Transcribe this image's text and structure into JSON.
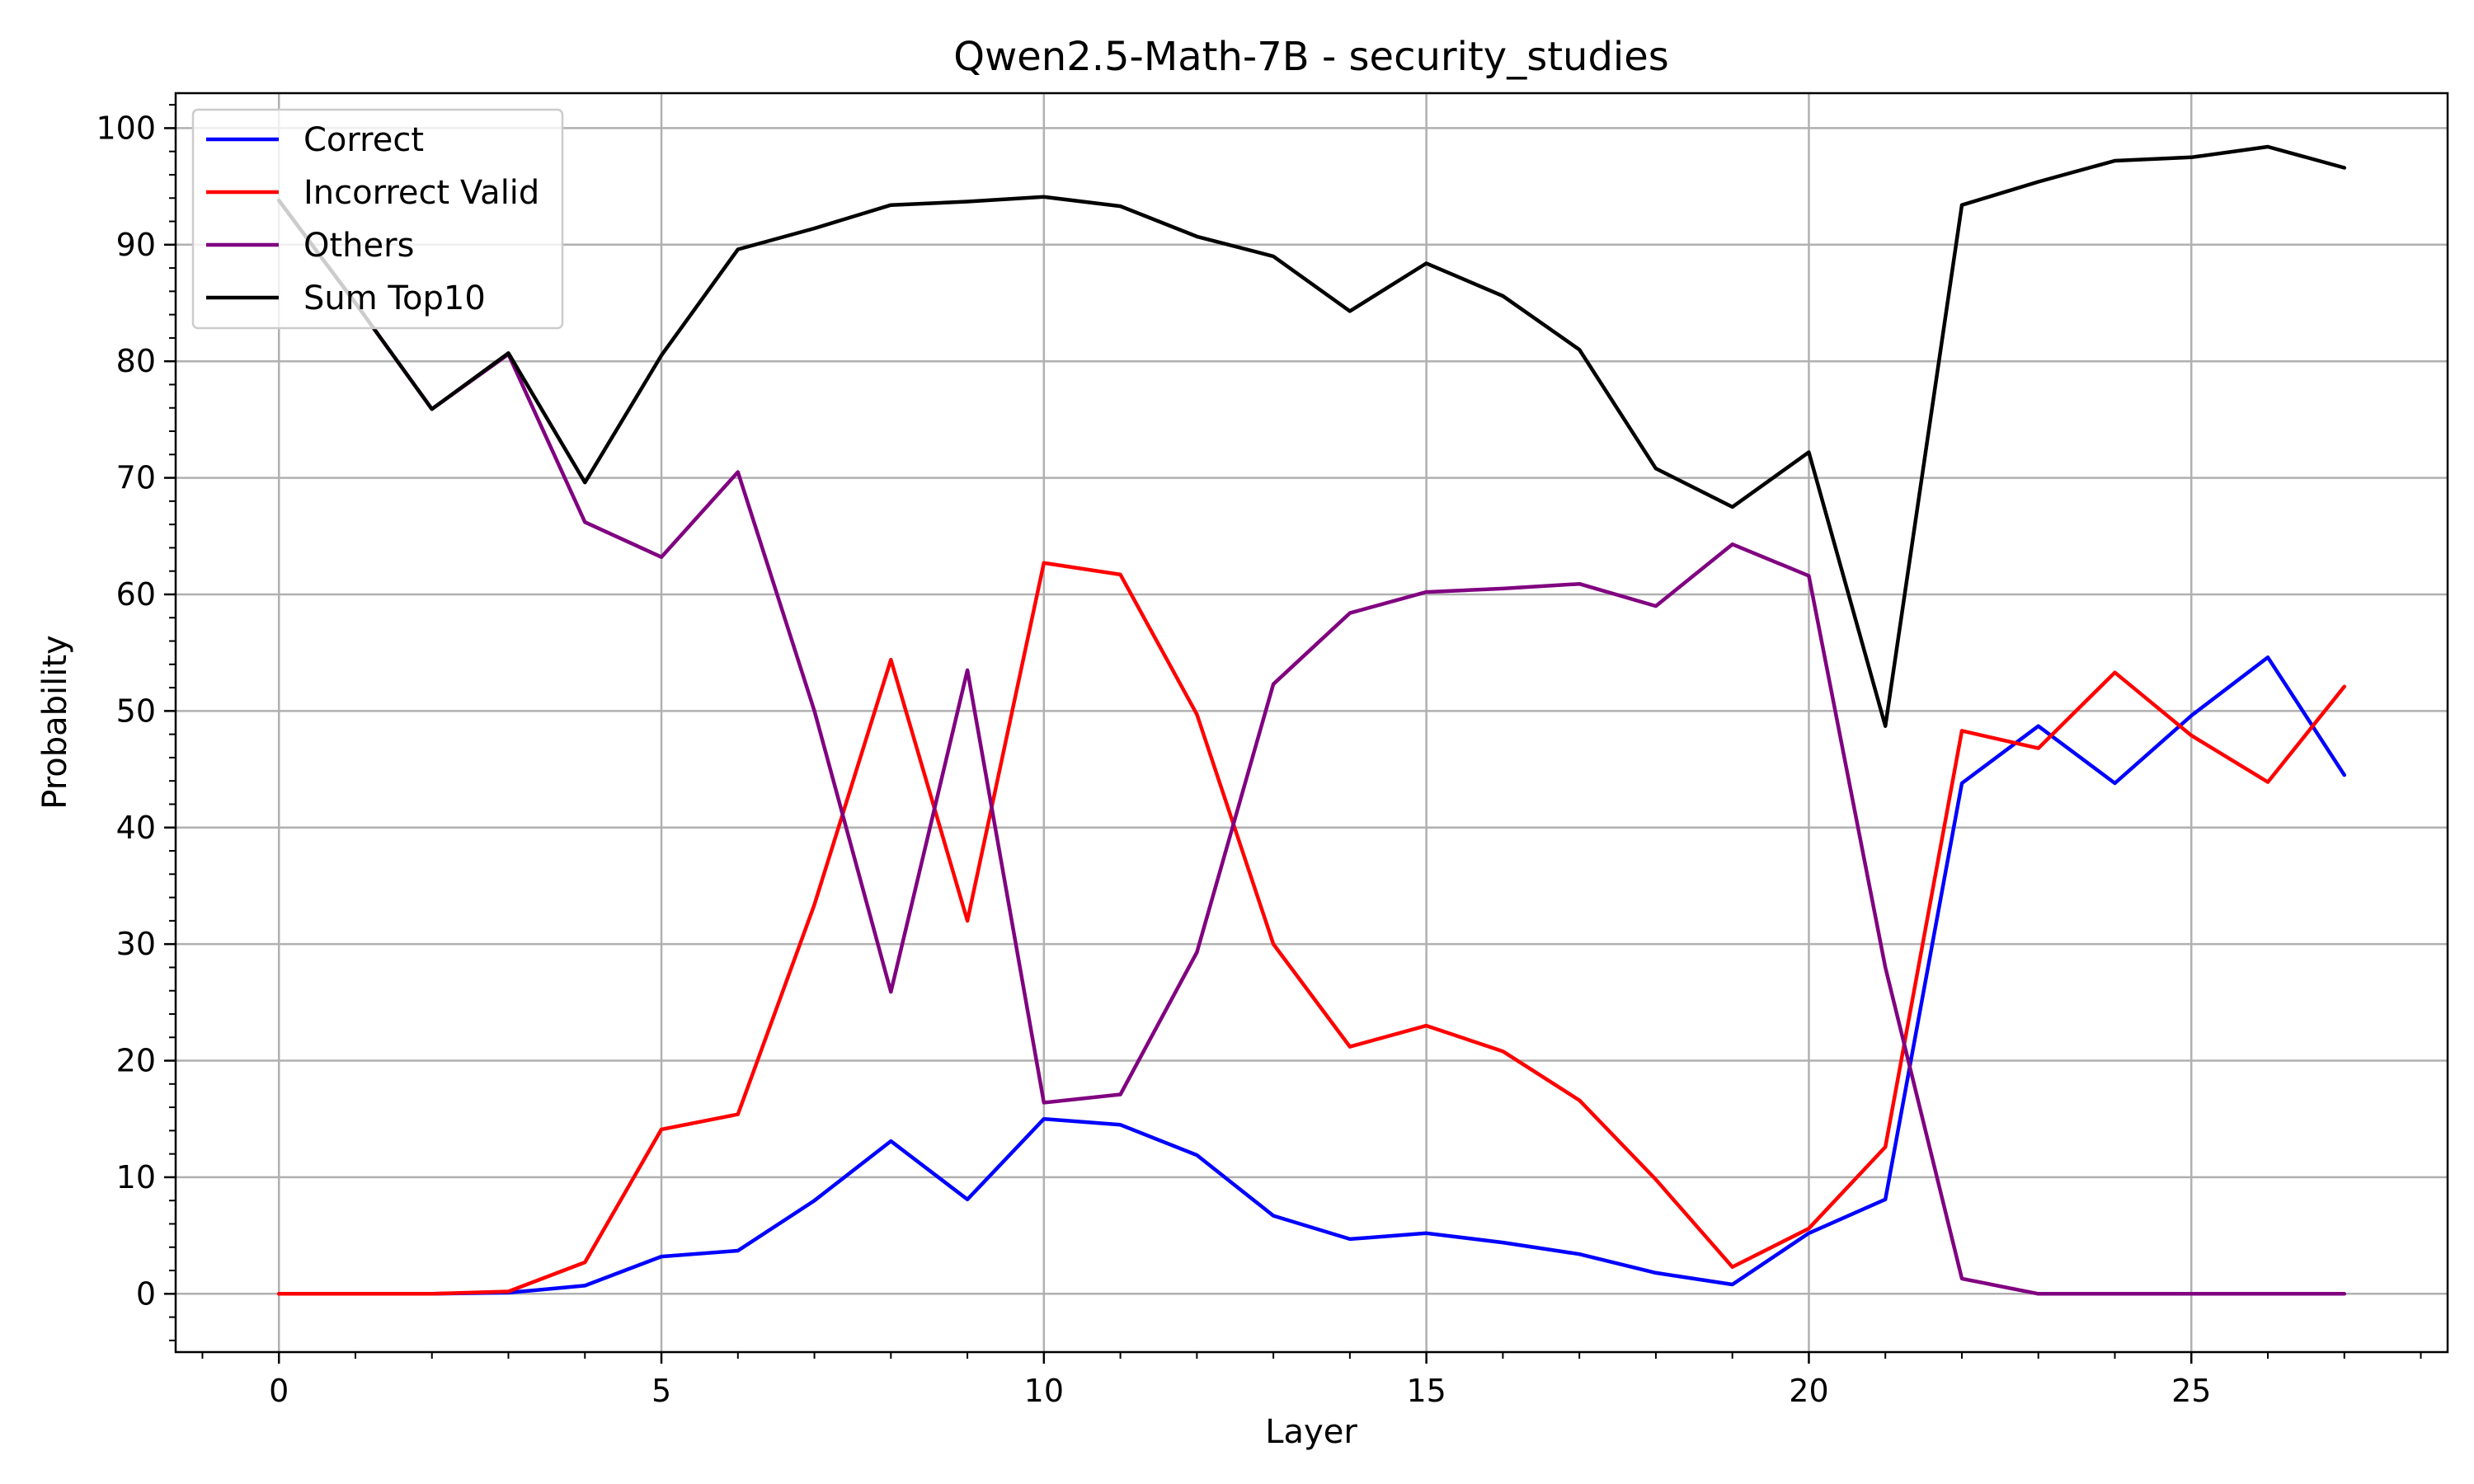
{
  "chart_data": {
    "type": "line",
    "title": "Qwen2.5-Math-7B - security_studies",
    "xlabel": "Layer",
    "ylabel": "Probability",
    "xlim": [
      -1.35,
      28.35
    ],
    "ylim": [
      -5,
      103
    ],
    "xticks": [
      0,
      5,
      10,
      15,
      20,
      25
    ],
    "yticks": [
      0,
      10,
      20,
      30,
      40,
      50,
      60,
      70,
      80,
      90,
      100
    ],
    "grid": true,
    "legend_position": "top-left",
    "x": [
      0,
      1,
      2,
      3,
      4,
      5,
      6,
      7,
      8,
      9,
      10,
      11,
      12,
      13,
      14,
      15,
      16,
      17,
      18,
      19,
      20,
      21,
      22,
      23,
      24,
      25,
      26,
      27
    ],
    "series": [
      {
        "name": "Correct",
        "color": "#0000ff",
        "values": [
          0,
          0,
          0,
          0.1,
          0.7,
          3.2,
          3.7,
          8.0,
          13.1,
          8.1,
          15.0,
          14.5,
          11.9,
          6.7,
          4.7,
          5.2,
          4.4,
          3.4,
          1.8,
          0.8,
          5.2,
          8.1,
          43.8,
          48.7,
          43.8,
          49.6,
          54.6,
          44.5
        ]
      },
      {
        "name": "Incorrect Valid",
        "color": "#ff0000",
        "values": [
          0,
          0,
          0,
          0.2,
          2.7,
          14.1,
          15.4,
          33.4,
          54.4,
          32.0,
          62.7,
          61.7,
          49.7,
          30.0,
          21.2,
          23.0,
          20.8,
          16.6,
          9.8,
          2.3,
          5.6,
          12.6,
          48.3,
          46.8,
          53.3,
          47.9,
          43.9,
          52.1
        ]
      },
      {
        "name": "Others",
        "color": "#800080",
        "values": [
          93.8,
          85.0,
          75.9,
          80.6,
          66.2,
          63.2,
          70.5,
          50.0,
          25.9,
          53.5,
          16.4,
          17.1,
          29.3,
          52.3,
          58.4,
          60.2,
          60.5,
          60.9,
          59.0,
          64.3,
          61.6,
          28.0,
          1.3,
          0,
          0,
          0,
          0,
          0
        ]
      },
      {
        "name": "Sum Top10",
        "color": "#000000",
        "values": [
          93.8,
          85.0,
          75.9,
          80.7,
          69.6,
          80.5,
          89.6,
          91.4,
          93.4,
          93.7,
          94.1,
          93.3,
          90.7,
          89.0,
          84.3,
          88.4,
          85.6,
          81.0,
          70.8,
          67.5,
          72.2,
          48.7,
          93.4,
          95.4,
          97.2,
          97.5,
          98.4,
          96.6
        ]
      }
    ]
  }
}
